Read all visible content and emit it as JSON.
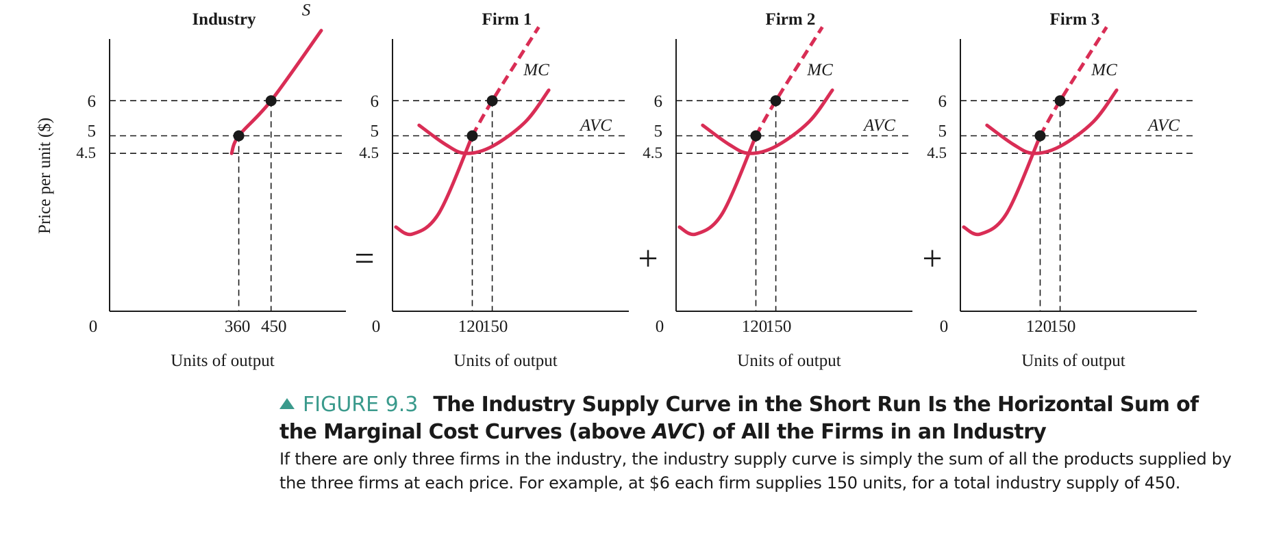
{
  "chart_data": [
    {
      "type": "line",
      "title": "Industry",
      "xlabel": "Units of output",
      "ylabel": "Price per unit ($)",
      "origin_label": "0",
      "y_ticks": [
        6,
        5,
        4.5
      ],
      "y_tick_labels": [
        "6",
        "5",
        "4.5"
      ],
      "x_ticks": [
        360,
        450
      ],
      "x_tick_labels": [
        "360",
        "450"
      ],
      "series": [
        {
          "name": "S",
          "style": "solid",
          "points": [
            [
              340,
              4.5
            ],
            [
              360,
              5
            ],
            [
              450,
              6
            ],
            [
              590,
              8
            ]
          ]
        }
      ],
      "highlighted_points": [
        [
          360,
          5
        ],
        [
          450,
          6
        ]
      ],
      "grid": false
    },
    {
      "type": "line",
      "title": "Firm 1",
      "xlabel": "Units of output",
      "origin_label": "0",
      "y_ticks": [
        6,
        5,
        4.5
      ],
      "y_tick_labels": [
        "6",
        "5",
        "4.5"
      ],
      "x_ticks": [
        120,
        150
      ],
      "x_tick_labels": [
        "120",
        "150"
      ],
      "series": [
        {
          "name": "MC",
          "style": "solid-then-dashed",
          "points": [
            [
              5,
              2.4
            ],
            [
              30,
              2.2
            ],
            [
              70,
              2.8
            ],
            [
              120,
              5
            ],
            [
              150,
              6
            ],
            [
              220,
              8.1
            ]
          ]
        },
        {
          "name": "AVC",
          "style": "solid",
          "points": [
            [
              40,
              5.3
            ],
            [
              80,
              4.75
            ],
            [
              110,
              4.5
            ],
            [
              150,
              4.7
            ],
            [
              200,
              5.4
            ],
            [
              235,
              6.3
            ]
          ]
        }
      ],
      "highlighted_points": [
        [
          120,
          5
        ],
        [
          150,
          6
        ]
      ],
      "grid": false
    },
    {
      "type": "line",
      "title": "Firm 2",
      "xlabel": "Units of output",
      "origin_label": "0",
      "y_ticks": [
        6,
        5,
        4.5
      ],
      "y_tick_labels": [
        "6",
        "5",
        "4.5"
      ],
      "x_ticks": [
        120,
        150
      ],
      "x_tick_labels": [
        "120",
        "150"
      ],
      "series": [
        {
          "name": "MC",
          "style": "solid-then-dashed",
          "points": [
            [
              5,
              2.4
            ],
            [
              30,
              2.2
            ],
            [
              70,
              2.8
            ],
            [
              120,
              5
            ],
            [
              150,
              6
            ],
            [
              220,
              8.1
            ]
          ]
        },
        {
          "name": "AVC",
          "style": "solid",
          "points": [
            [
              40,
              5.3
            ],
            [
              80,
              4.75
            ],
            [
              110,
              4.5
            ],
            [
              150,
              4.7
            ],
            [
              200,
              5.4
            ],
            [
              235,
              6.3
            ]
          ]
        }
      ],
      "highlighted_points": [
        [
          120,
          5
        ],
        [
          150,
          6
        ]
      ],
      "grid": false
    },
    {
      "type": "line",
      "title": "Firm 3",
      "xlabel": "Units of output",
      "origin_label": "0",
      "y_ticks": [
        6,
        5,
        4.5
      ],
      "y_tick_labels": [
        "6",
        "5",
        "4.5"
      ],
      "x_ticks": [
        120,
        150
      ],
      "x_tick_labels": [
        "120",
        "150"
      ],
      "series": [
        {
          "name": "MC",
          "style": "solid-then-dashed",
          "points": [
            [
              5,
              2.4
            ],
            [
              30,
              2.2
            ],
            [
              70,
              2.8
            ],
            [
              120,
              5
            ],
            [
              150,
              6
            ],
            [
              220,
              8.1
            ]
          ]
        },
        {
          "name": "AVC",
          "style": "solid",
          "points": [
            [
              40,
              5.3
            ],
            [
              80,
              4.75
            ],
            [
              110,
              4.5
            ],
            [
              150,
              4.7
            ],
            [
              200,
              5.4
            ],
            [
              235,
              6.3
            ]
          ]
        }
      ],
      "highlighted_points": [
        [
          120,
          5
        ],
        [
          150,
          6
        ]
      ],
      "grid": false
    }
  ],
  "operators": [
    "=",
    "+",
    "+"
  ],
  "colors": {
    "curve": "#d92d55",
    "figure_label": "#3a9a8c",
    "text": "#1a1a1a"
  },
  "caption": {
    "figure_number": "FIGURE 9.3",
    "title_part1": "The Industry Supply Curve in the Short Run Is the Horizontal Sum of the Marginal Cost Curves (above ",
    "title_italic": "AVC",
    "title_part2": ") of All the Firms in an Industry",
    "body": "If there are only three firms in the industry, the industry supply curve is simply the sum of all the products supplied by the three firms at each price. For example, at $6 each firm supplies 150 units, for a total industry supply of 450."
  }
}
